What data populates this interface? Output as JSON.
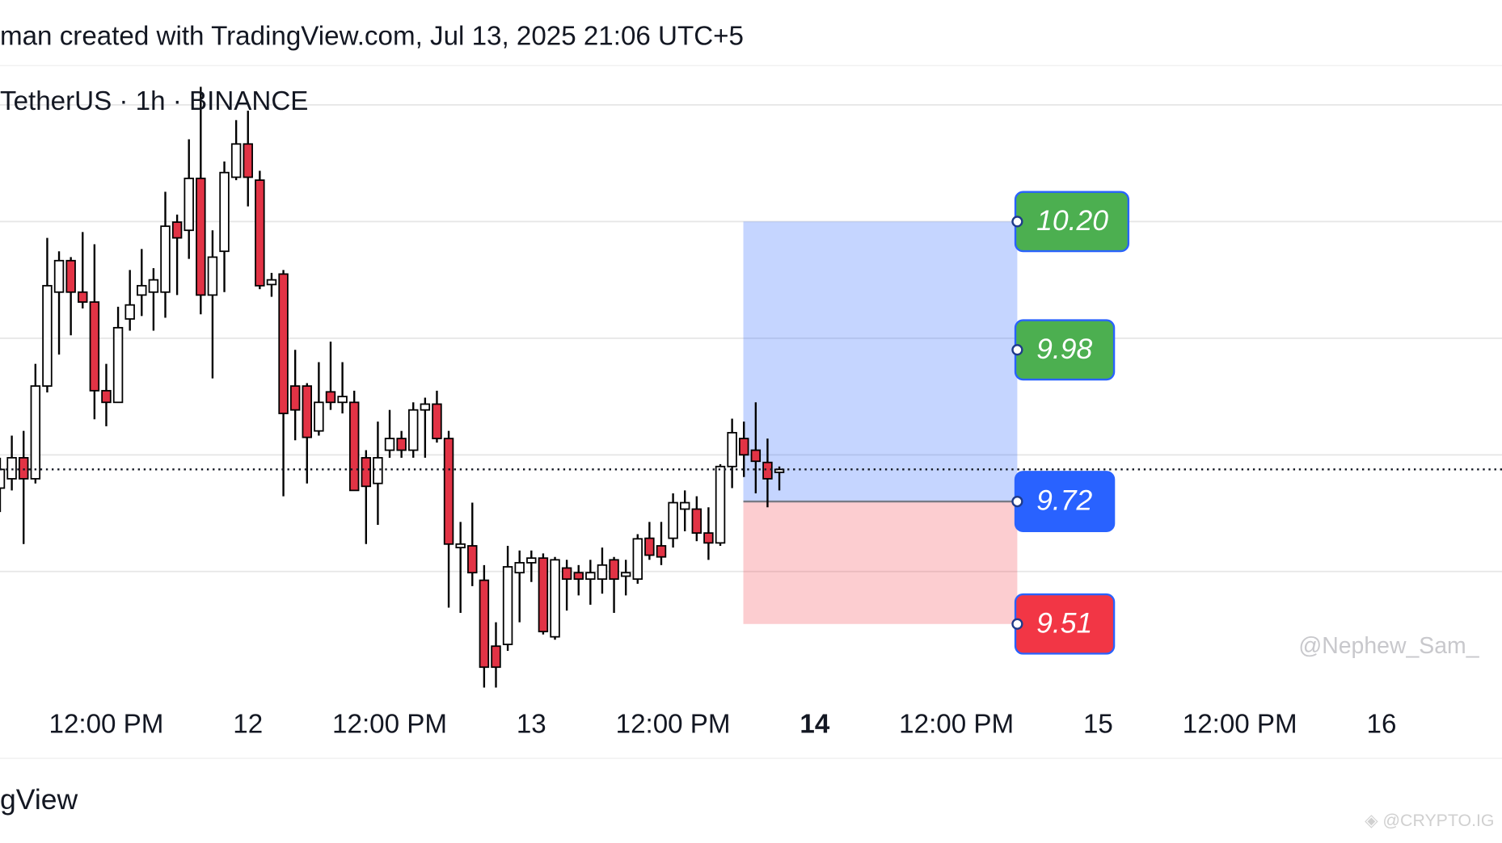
{
  "chart_data": {
    "type": "candlestick",
    "title": "man created with TradingView.com, Jul 13, 2025 21:06 UTC+5",
    "subtitle": "TetherUS · 1h · BINANCE",
    "x": [
      3,
      4,
      5,
      6,
      7,
      8,
      9,
      10,
      11,
      12,
      13,
      14,
      15,
      16,
      17,
      18,
      19,
      20,
      21,
      22,
      23,
      24,
      25,
      26,
      27,
      28,
      29,
      30,
      31,
      32,
      33,
      34,
      35,
      36,
      37,
      38,
      39,
      40,
      41,
      42,
      43,
      44,
      45,
      46,
      47,
      48,
      49,
      50,
      51,
      52,
      53,
      54,
      55,
      56,
      57,
      58,
      59,
      60,
      61,
      62,
      63,
      64,
      65,
      66,
      67,
      68,
      69
    ],
    "open": [
      9.743,
      9.759,
      9.795,
      9.759,
      9.918,
      10.079,
      10.133,
      10.079,
      10.062,
      9.91,
      9.89,
      10.033,
      10.074,
      10.079,
      10.079,
      10.199,
      10.185,
      10.274,
      10.074,
      10.149,
      10.276,
      10.333,
      10.271,
      10.092,
      10.11,
      9.918,
      9.918,
      9.841,
      9.908,
      9.89,
      9.89,
      9.795,
      9.751,
      9.808,
      9.828,
      9.808,
      9.877,
      9.887,
      9.828,
      9.641,
      9.644,
      9.585,
      9.472,
      9.475,
      9.598,
      9.615,
      9.623,
      9.488,
      9.606,
      9.598,
      9.587,
      9.587,
      9.62,
      9.592,
      9.587,
      9.657,
      9.644,
      9.657,
      9.707,
      9.707,
      9.666,
      9.649,
      9.78,
      9.828,
      9.808,
      9.787,
      9.77
    ],
    "high": [
      9.795,
      9.833,
      9.841,
      9.956,
      10.172,
      10.149,
      10.139,
      10.182,
      10.161,
      9.956,
      10.054,
      10.117,
      10.153,
      10.12,
      10.251,
      10.212,
      10.341,
      10.431,
      10.185,
      10.303,
      10.374,
      10.39,
      10.287,
      10.112,
      10.117,
      9.98,
      9.923,
      9.959,
      9.994,
      9.959,
      9.91,
      9.808,
      9.857,
      9.877,
      9.841,
      9.89,
      9.898,
      9.91,
      9.841,
      9.685,
      9.718,
      9.611,
      9.513,
      9.644,
      9.636,
      9.636,
      9.631,
      9.625,
      9.62,
      9.611,
      9.62,
      9.641,
      9.625,
      9.62,
      9.664,
      9.685,
      9.685,
      9.734,
      9.739,
      9.729,
      9.71,
      9.784,
      9.862,
      9.857,
      9.89,
      9.828,
      9.78
    ],
    "low": [
      9.702,
      9.739,
      9.647,
      9.751,
      9.907,
      9.972,
      10.005,
      10.051,
      9.861,
      9.849,
      9.89,
      10.013,
      10.038,
      10.013,
      10.035,
      10.074,
      10.136,
      10.041,
      9.931,
      10.079,
      10.271,
      10.226,
      10.084,
      10.071,
      9.729,
      9.825,
      9.751,
      9.833,
      9.877,
      9.871,
      9.739,
      9.647,
      9.68,
      9.795,
      9.795,
      9.795,
      9.795,
      9.821,
      9.538,
      9.529,
      9.575,
      9.401,
      9.401,
      9.464,
      9.513,
      9.582,
      9.492,
      9.483,
      9.533,
      9.559,
      9.543,
      9.562,
      9.529,
      9.559,
      9.579,
      9.62,
      9.611,
      9.641,
      9.669,
      9.652,
      9.62,
      9.644,
      9.743,
      9.762,
      9.734,
      9.71,
      9.739
    ],
    "close": [
      9.775,
      9.795,
      9.759,
      9.918,
      10.09,
      10.133,
      10.079,
      10.062,
      9.91,
      9.89,
      10.018,
      10.057,
      10.09,
      10.1,
      10.192,
      10.172,
      10.274,
      10.074,
      10.139,
      10.284,
      10.333,
      10.276,
      10.09,
      10.1,
      9.871,
      9.877,
      9.83,
      9.89,
      9.89,
      9.9,
      9.739,
      9.746,
      9.795,
      9.828,
      9.808,
      9.877,
      9.887,
      9.828,
      9.647,
      9.647,
      9.598,
      9.436,
      9.436,
      9.608,
      9.615,
      9.623,
      9.497,
      9.62,
      9.587,
      9.587,
      9.598,
      9.611,
      9.587,
      9.598,
      9.656,
      9.628,
      9.625,
      9.718,
      9.718,
      9.666,
      9.649,
      9.78,
      9.838,
      9.8,
      9.789,
      9.759,
      9.775
    ],
    "up_color": "#ffffff",
    "down_color": "#e23345",
    "xlim": [
      3,
      130.2
    ],
    "ylim": [
      9.283,
      10.579
    ],
    "yticks": [
      9.6,
      9.8,
      10.0,
      10.2,
      10.4
    ],
    "xticks": [
      {
        "value": 12,
        "label": "12:00 PM"
      },
      {
        "value": 24,
        "label": "12"
      },
      {
        "value": 36,
        "label": "12:00 PM"
      },
      {
        "value": 48,
        "label": "13"
      },
      {
        "value": 60,
        "label": "12:00 PM"
      },
      {
        "value": 72,
        "label": "14",
        "bold": true
      },
      {
        "value": 84,
        "label": "12:00 PM"
      },
      {
        "value": 96,
        "label": "15"
      },
      {
        "value": 108,
        "label": "12:00 PM"
      },
      {
        "value": 120,
        "label": "16"
      }
    ],
    "grid": true,
    "levels": [
      {
        "value": 10.2,
        "label": "10.20",
        "color": "#4caf50"
      },
      {
        "value": 9.98,
        "label": "9.98",
        "color": "#4caf50"
      },
      {
        "value": 9.72,
        "label": "9.72",
        "color": "#2962ff"
      },
      {
        "value": 9.51,
        "label": "9.51",
        "color": "#f23645"
      }
    ],
    "watermark": "@Nephew_Sam_",
    "footer": "gView",
    "corner_mark": "◈ @CRYPTO.IG"
  }
}
